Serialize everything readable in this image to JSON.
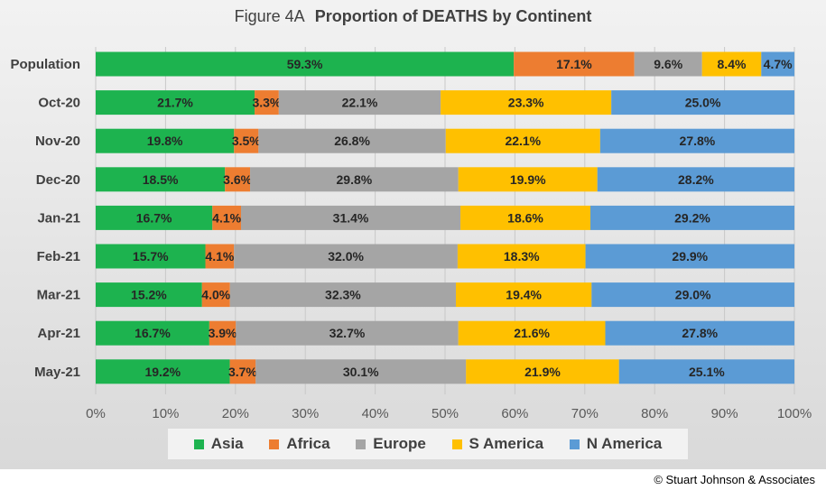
{
  "title": {
    "figure": "Figure  4A",
    "text": "Proportion of DEATHS by Continent"
  },
  "credit": "© Stuart Johnson & Associates",
  "colors": {
    "Asia": "#1db34f",
    "Africa": "#ed7d31",
    "Europe": "#a5a5a5",
    "S America": "#ffc000",
    "N America": "#5b9bd5"
  },
  "chart_data": {
    "type": "bar",
    "orientation": "horizontal",
    "stacked": true,
    "title": "Figure  4A  Proportion of DEATHS by Continent",
    "categories": [
      "Population",
      "Oct-20",
      "Nov-20",
      "Dec-20",
      "Jan-21",
      "Feb-21",
      "Mar-21",
      "Apr-21",
      "May-21"
    ],
    "series": [
      {
        "name": "Asia",
        "values": [
          59.3,
          21.7,
          19.8,
          18.5,
          16.7,
          15.7,
          15.2,
          16.7,
          19.2
        ],
        "labels": [
          "59.3%",
          "21.7%",
          "19.8%",
          "18.5%",
          "16.7%",
          "15.7%",
          "15.2%",
          "16.7%",
          "19.2%"
        ]
      },
      {
        "name": "Africa",
        "values": [
          17.1,
          3.3,
          3.5,
          3.6,
          4.1,
          4.1,
          4.0,
          3.9,
          3.7
        ],
        "labels": [
          "17.1%",
          "3.3%",
          "3.5%",
          "3.6%",
          "4.1%",
          "4.1%",
          "4.0%",
          "3.9%",
          "3.7%"
        ]
      },
      {
        "name": "Europe",
        "values": [
          9.6,
          22.1,
          26.8,
          29.8,
          31.4,
          32.0,
          32.3,
          32.7,
          30.1
        ],
        "labels": [
          "9.6%",
          "22.1%",
          "26.8%",
          "29.8%",
          "31.4%",
          "32.0%",
          "32.3%",
          "32.7%",
          "30.1%"
        ]
      },
      {
        "name": "S America",
        "values": [
          8.4,
          23.3,
          22.1,
          19.9,
          18.6,
          18.3,
          19.4,
          21.6,
          21.9
        ],
        "labels": [
          "8.4%",
          "23.3%",
          "22.1%",
          "19.9%",
          "18.6%",
          "18.3%",
          "19.4%",
          "21.6%",
          "21.9%"
        ]
      },
      {
        "name": "N America",
        "values": [
          4.7,
          25.0,
          27.8,
          28.2,
          29.2,
          29.9,
          29.0,
          27.8,
          25.1
        ],
        "labels": [
          "4.7%",
          "25.0%",
          "27.8%",
          "28.2%",
          "29.2%",
          "29.9%",
          "29.0%",
          "27.8%",
          "25.1%"
        ]
      }
    ],
    "x_ticks": [
      "0%",
      "10%",
      "20%",
      "30%",
      "40%",
      "50%",
      "60%",
      "70%",
      "80%",
      "90%",
      "100%"
    ],
    "xlim": [
      0,
      100
    ],
    "grid": true,
    "legend": "bottom"
  }
}
